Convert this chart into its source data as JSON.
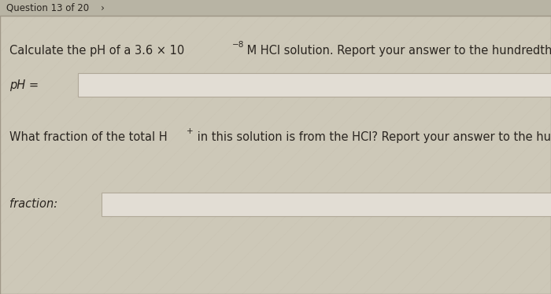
{
  "bg_color": "#cdc8b8",
  "panel_color": "#dedad0",
  "input_box_color": "#dedad0",
  "input_box_border": "#b0a898",
  "top_bar_color": "#b8b4a4",
  "text_color": "#2a2520",
  "border_color": "#a09888",
  "font_size_q": 10.5,
  "font_size_label": 10.5,
  "font_size_title": 8.5,
  "q1_main": "Calculate the pH of a 3.6 × 10",
  "q1_exp": "−8",
  "q1_tail": " M HCl solution. Report your answer to the hundredths place.",
  "label1": "pH =",
  "q2_main": "What fraction of the total H",
  "q2_sup": "+",
  "q2_tail": " in this solution is from the HCl? Report your answer to the hundredths place.",
  "label2": "fraction:",
  "title": "Question 13 of 20    ›"
}
